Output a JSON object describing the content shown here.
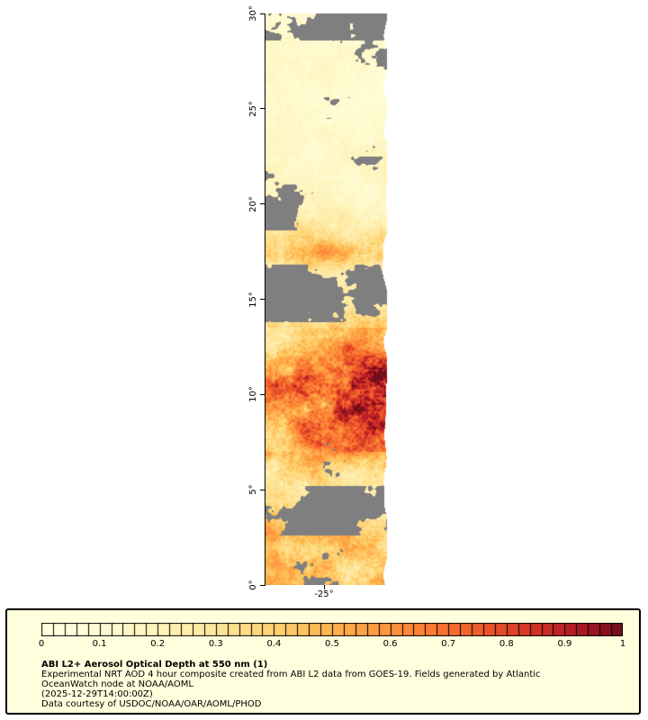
{
  "map": {
    "y_axis": {
      "tick_labels": [
        "30°",
        "25°",
        "20°",
        "15°",
        "10°",
        "5°",
        "0°"
      ]
    },
    "x_axis": {
      "tick_label": "-25°"
    },
    "no_data_color": "#7f7f7f"
  },
  "colorbar": {
    "min": 0,
    "max": 1,
    "segments": 50,
    "tick_labels": [
      "0",
      "0.1",
      "0.2",
      "0.3",
      "0.4",
      "0.5",
      "0.6",
      "0.7",
      "0.8",
      "0.9",
      "1"
    ],
    "stops": [
      {
        "t": 0.0,
        "color": "#ffffe2"
      },
      {
        "t": 0.1,
        "color": "#fffbd2"
      },
      {
        "t": 0.2,
        "color": "#fef3b9"
      },
      {
        "t": 0.3,
        "color": "#fee69c"
      },
      {
        "t": 0.4,
        "color": "#fed271"
      },
      {
        "t": 0.5,
        "color": "#feb24c"
      },
      {
        "t": 0.58,
        "color": "#fd9a41"
      },
      {
        "t": 0.66,
        "color": "#fc7f34"
      },
      {
        "t": 0.74,
        "color": "#f1602b"
      },
      {
        "t": 0.82,
        "color": "#dd3e27"
      },
      {
        "t": 0.9,
        "color": "#bc1f25"
      },
      {
        "t": 0.96,
        "color": "#921320"
      },
      {
        "t": 1.0,
        "color": "#6b0d1a"
      }
    ]
  },
  "legend": {
    "background": "#ffffdd",
    "title": "ABI L2+ Aerosol Optical Depth at 550 nm (1)",
    "lines": [
      "Experimental NRT AOD 4 hour composite created from ABI L2 data from GOES-19. Fields generated by Atlantic",
      "OceanWatch node at NOAA/AOML",
      "(2025-12-29T14:00:00Z)",
      "Data courtesy of USDOC/NOAA/OAR/AOML/PHOD"
    ]
  }
}
